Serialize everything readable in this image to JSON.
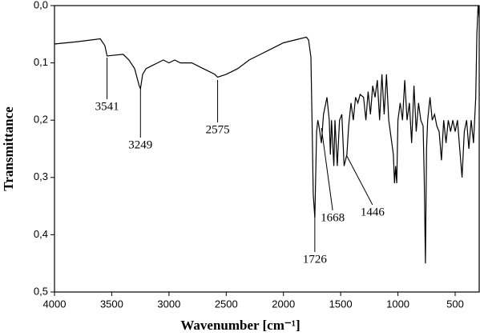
{
  "chart_data": {
    "type": "line",
    "x_label": "Wavenumber [cm⁻¹]",
    "y_label": "Transmittance",
    "xlim": [
      4000,
      290
    ],
    "ylim": [
      0,
      0.5
    ],
    "xticks": [
      4000,
      3500,
      3000,
      2500,
      2000,
      1500,
      1000,
      500
    ],
    "yticks": [
      {
        "value": 0,
        "label": "0,0"
      },
      {
        "value": 0.1,
        "label": "0,1"
      },
      {
        "value": 0.2,
        "label": "0,2"
      },
      {
        "value": 0.3,
        "label": "0,3"
      },
      {
        "value": 0.4,
        "label": "0,4"
      },
      {
        "value": 0.5,
        "label": "0,5"
      }
    ],
    "inverted_y": true,
    "series": [
      {
        "color": "#000000",
        "x": [
          4000,
          3800,
          3600,
          3560,
          3541,
          3500,
          3400,
          3350,
          3300,
          3260,
          3249,
          3230,
          3200,
          3150,
          3100,
          3050,
          3000,
          2950,
          2900,
          2800,
          2700,
          2600,
          2575,
          2500,
          2400,
          2300,
          2200,
          2100,
          2000,
          1900,
          1800,
          1780,
          1760,
          1750,
          1740,
          1726,
          1710,
          1700,
          1690,
          1668,
          1650,
          1630,
          1620,
          1600,
          1590,
          1580,
          1560,
          1550,
          1530,
          1510,
          1490,
          1470,
          1446,
          1430,
          1410,
          1390,
          1370,
          1350,
          1330,
          1300,
          1280,
          1260,
          1240,
          1220,
          1200,
          1180,
          1160,
          1140,
          1120,
          1100,
          1080,
          1060,
          1040,
          1030,
          1020,
          1010,
          1000,
          980,
          960,
          940,
          920,
          900,
          880,
          860,
          840,
          820,
          800,
          780,
          770,
          760,
          750,
          740,
          720,
          700,
          680,
          660,
          640,
          620,
          600,
          580,
          560,
          540,
          520,
          500,
          480,
          460,
          440,
          420,
          400,
          380,
          360,
          340,
          320,
          310,
          300,
          290
        ],
        "values": [
          0.067,
          0.063,
          0.058,
          0.07,
          0.088,
          0.087,
          0.085,
          0.095,
          0.11,
          0.14,
          0.145,
          0.12,
          0.11,
          0.105,
          0.1,
          0.095,
          0.1,
          0.095,
          0.1,
          0.1,
          0.11,
          0.12,
          0.125,
          0.12,
          0.11,
          0.095,
          0.085,
          0.075,
          0.065,
          0.06,
          0.055,
          0.06,
          0.09,
          0.2,
          0.33,
          0.37,
          0.22,
          0.2,
          0.21,
          0.24,
          0.19,
          0.17,
          0.16,
          0.2,
          0.26,
          0.2,
          0.28,
          0.2,
          0.28,
          0.2,
          0.19,
          0.28,
          0.26,
          0.21,
          0.17,
          0.2,
          0.16,
          0.17,
          0.155,
          0.16,
          0.2,
          0.15,
          0.19,
          0.14,
          0.16,
          0.13,
          0.2,
          0.12,
          0.19,
          0.12,
          0.2,
          0.23,
          0.26,
          0.31,
          0.28,
          0.31,
          0.2,
          0.17,
          0.2,
          0.13,
          0.2,
          0.17,
          0.24,
          0.14,
          0.22,
          0.17,
          0.2,
          0.21,
          0.3,
          0.45,
          0.25,
          0.2,
          0.16,
          0.2,
          0.19,
          0.21,
          0.22,
          0.27,
          0.2,
          0.24,
          0.2,
          0.22,
          0.2,
          0.22,
          0.2,
          0.25,
          0.3,
          0.22,
          0.2,
          0.25,
          0.2,
          0.24,
          0.16,
          0.05,
          0,
          0.02
        ]
      }
    ],
    "annotations": [
      {
        "label": "3541",
        "x": 3541
      },
      {
        "label": "3249",
        "x": 3249
      },
      {
        "label": "2575",
        "x": 2575
      },
      {
        "label": "1726",
        "x": 1726
      },
      {
        "label": "1668",
        "x": 1668
      },
      {
        "label": "1446",
        "x": 1446
      }
    ]
  }
}
